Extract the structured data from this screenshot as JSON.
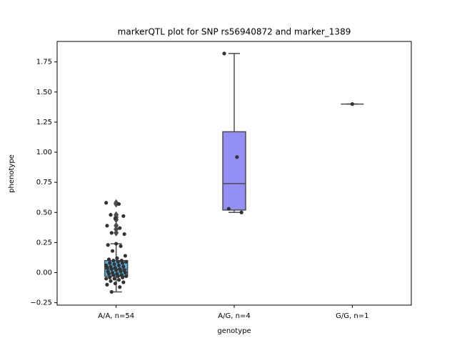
{
  "chart_data": {
    "type": "box",
    "title": "markerQTL plot for SNP rs56940872 and marker_1389",
    "xlabel": "genotype",
    "ylabel": "phenotype",
    "categories": [
      "A/A, n=54",
      "A/G, n=4",
      "G/G, n=1"
    ],
    "colors": [
      "#4fb3e8",
      "#938ff5",
      "#c98be8"
    ],
    "boxes": [
      {
        "whislo": -0.16,
        "q1": -0.03,
        "med": 0.03,
        "q3": 0.1,
        "whishi": 0.24,
        "fliers": [
          0.58,
          0.57,
          0.48,
          0.46,
          0.44,
          0.39,
          0.36,
          0.33
        ]
      },
      {
        "whislo": 0.5,
        "q1": 0.52,
        "med": 0.74,
        "q3": 1.17,
        "whishi": 1.82,
        "fliers": []
      },
      {
        "whislo": 1.4,
        "q1": 1.4,
        "med": 1.4,
        "q3": 1.4,
        "whishi": 1.4,
        "fliers": []
      }
    ],
    "points": [
      [
        0.58,
        0.57,
        0.48,
        0.47,
        0.45,
        0.39,
        0.37,
        0.33,
        0.32,
        0.24,
        0.23,
        0.22,
        0.18,
        0.14,
        0.12,
        0.11,
        0.1,
        0.1,
        0.09,
        0.09,
        0.08,
        0.08,
        0.07,
        0.06,
        0.06,
        0.05,
        0.05,
        0.04,
        0.04,
        0.03,
        0.03,
        0.02,
        0.02,
        0.01,
        0.01,
        0.0,
        0.0,
        -0.01,
        -0.01,
        -0.02,
        -0.02,
        -0.03,
        -0.03,
        -0.04,
        -0.04,
        -0.05,
        -0.05,
        -0.06,
        -0.07,
        -0.08,
        -0.09,
        -0.1,
        -0.12,
        -0.16
      ],
      [
        1.82,
        0.96,
        0.53,
        0.5
      ],
      [
        1.4
      ]
    ],
    "ylim": [
      -0.27,
      1.92
    ],
    "yticks": [
      {
        "value": -0.25,
        "label": "−0.25"
      },
      {
        "value": 0,
        "label": "0.00"
      },
      0.25,
      {
        "value": 0.5,
        "label": "0.50"
      },
      0.75,
      {
        "value": 1,
        "label": "1.00"
      },
      1.25,
      {
        "value": 1.5,
        "label": "1.50"
      },
      1.75
    ]
  }
}
